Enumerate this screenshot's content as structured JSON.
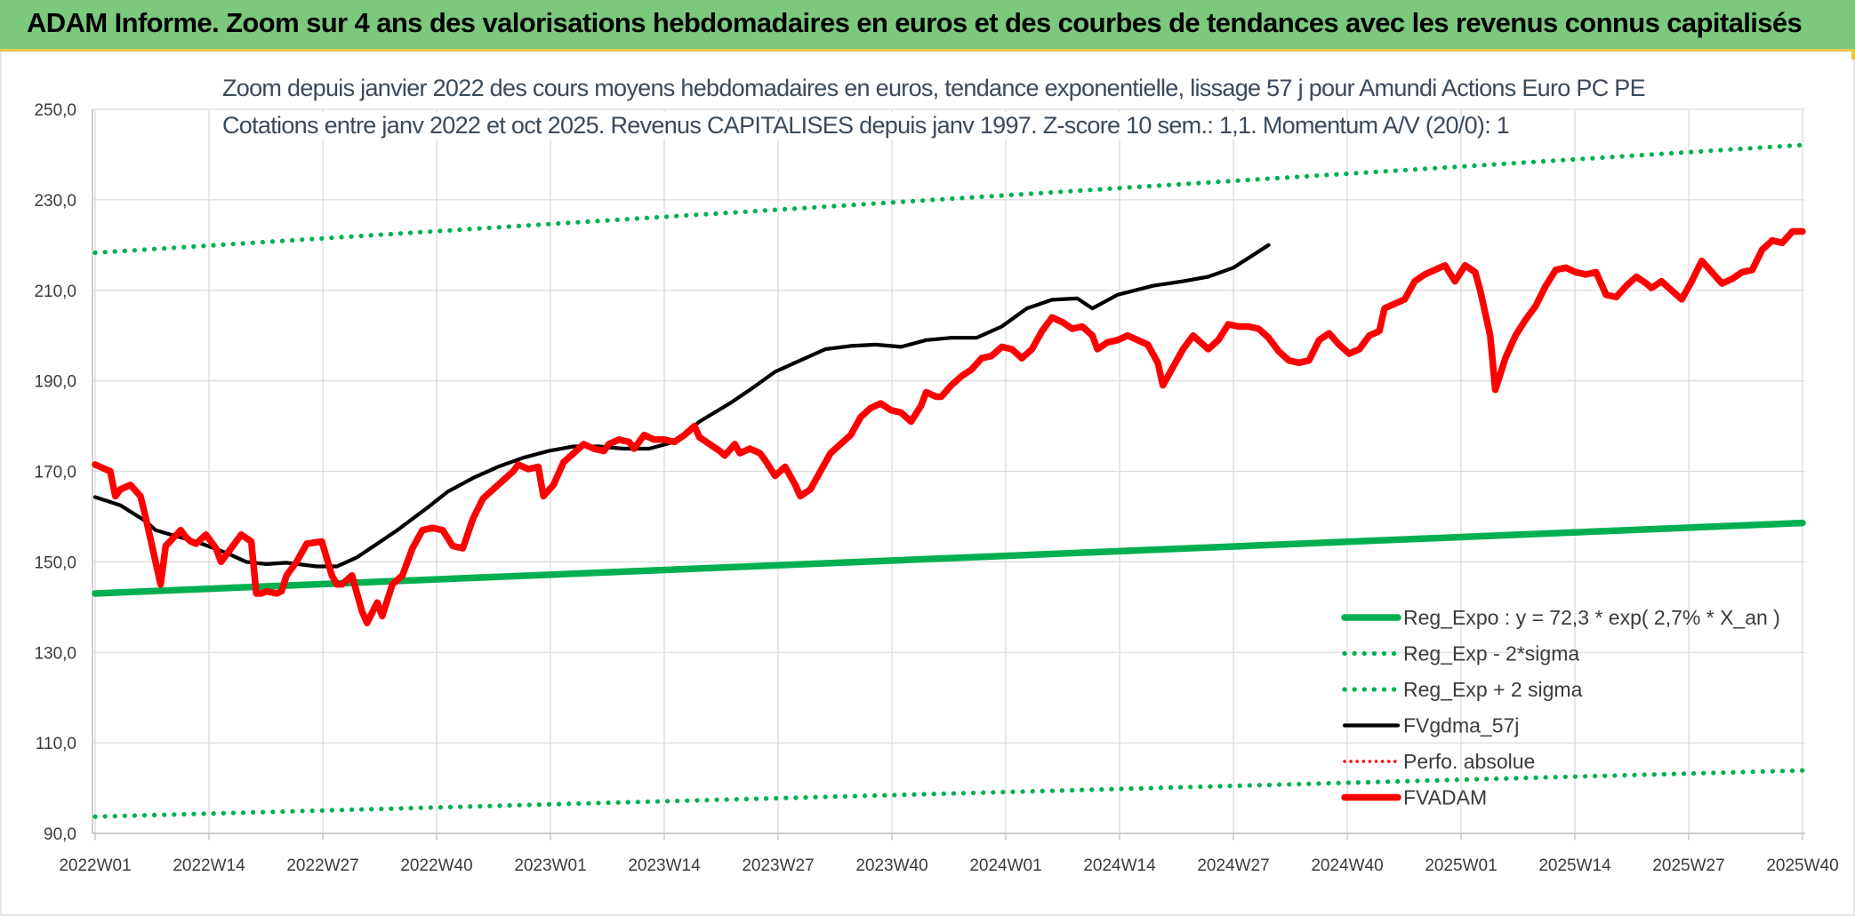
{
  "header": {
    "title": "ADAM Informe. Zoom sur 4 ans des valorisations hebdomadaires en euros et des courbes de tendances avec les revenus connus capitalisés"
  },
  "chart_data": {
    "type": "line",
    "title": "Zoom depuis janvier 2022 des cours moyens hebdomadaires en euros, tendance exponentielle, lissage 57 j pour Amundi Actions Euro PC PE",
    "subtitle": "Cotations entre janv 2022 et oct 2025. Revenus CAPITALISES depuis janv 1997. Z-score 10 sem.: 1,1. Momentum A/V (20/0): 1",
    "xlabel": "",
    "ylabel": "",
    "ylim": [
      90,
      250
    ],
    "y_ticks": [
      "90,0",
      "110,0",
      "130,0",
      "150,0",
      "170,0",
      "190,0",
      "210,0",
      "230,0",
      "250,0"
    ],
    "x_tick_labels": [
      "2022W01",
      "2022W14",
      "2022W27",
      "2022W40",
      "2023W01",
      "2023W14",
      "2023W27",
      "2023W40",
      "2024W01",
      "2024W14",
      "2024W27",
      "2024W40",
      "2025W01",
      "2025W14",
      "2025W27",
      "2025W40"
    ],
    "week_count": 196,
    "grid": true,
    "legend_position": "bottom-right",
    "series": [
      {
        "name": "Reg_Expo : y = 72,3 * exp( 2,7% *  X_an )",
        "color": "#00b050",
        "style": "solid",
        "key": [
          [
            0,
            143.0
          ],
          [
            195,
            158.6
          ]
        ]
      },
      {
        "name": "Reg_Exp - 2*sigma",
        "color": "#00b050",
        "style": "dotted",
        "key": [
          [
            0,
            93.7
          ],
          [
            195,
            103.9
          ]
        ]
      },
      {
        "name": "Reg_Exp + 2 sigma",
        "color": "#00b050",
        "style": "dotted",
        "key": [
          [
            0,
            218.3
          ],
          [
            195,
            242.1
          ]
        ]
      },
      {
        "name": "FVgdma_57j",
        "color": "#000000",
        "style": "solid",
        "key": [
          [
            0,
            164.3
          ],
          [
            5,
            162.5
          ],
          [
            10,
            159.0
          ],
          [
            12,
            157.0
          ],
          [
            15,
            156.0
          ],
          [
            20,
            154.5
          ],
          [
            26,
            152.0
          ],
          [
            30,
            150.0
          ],
          [
            34,
            149.5
          ],
          [
            38,
            149.8
          ],
          [
            44,
            149.0
          ],
          [
            48,
            149.0
          ],
          [
            52,
            151.0
          ],
          [
            56,
            154.0
          ],
          [
            60,
            157.0
          ],
          [
            66,
            162.0
          ],
          [
            70,
            165.5
          ],
          [
            75,
            168.5
          ],
          [
            80,
            171.0
          ],
          [
            85,
            173.0
          ],
          [
            90,
            174.5
          ],
          [
            95,
            175.5
          ],
          [
            100,
            175.5
          ],
          [
            105,
            175.0
          ],
          [
            110,
            175.0
          ],
          [
            115,
            176.5
          ],
          [
            120,
            181.0
          ],
          [
            126,
            185.0
          ],
          [
            130,
            188.0
          ],
          [
            135,
            192.0
          ],
          [
            140,
            194.5
          ],
          [
            145,
            197.0
          ],
          [
            150,
            197.7
          ],
          [
            155,
            198.0
          ],
          [
            160,
            197.5
          ],
          [
            165,
            199.0
          ],
          [
            170,
            199.5
          ],
          [
            175,
            199.5
          ],
          [
            180,
            202.0
          ],
          [
            185,
            206.0
          ],
          [
            190,
            207.9
          ],
          [
            195,
            208.2
          ],
          [
            198,
            206.0
          ],
          [
            203,
            209.0
          ],
          [
            210,
            211.0
          ],
          [
            216,
            212.0
          ],
          [
            221,
            213.0
          ],
          [
            226,
            215.0
          ],
          [
            233,
            220.0
          ]
        ]
      },
      {
        "name": "Perfo. absolue",
        "color": "#ff0000",
        "style": "dotted",
        "key": []
      },
      {
        "name": "FVADAM",
        "color": "#ff0000",
        "style": "solid",
        "key": [
          [
            0,
            171.5
          ],
          [
            2,
            170.5
          ],
          [
            3,
            170.0
          ],
          [
            4,
            164.5
          ],
          [
            5,
            166.0
          ],
          [
            7,
            167.0
          ],
          [
            9,
            164.5
          ],
          [
            10,
            160.0
          ],
          [
            11,
            155.0
          ],
          [
            13,
            145.0
          ],
          [
            14,
            153.5
          ],
          [
            17,
            157.0
          ],
          [
            18,
            155.5
          ],
          [
            19,
            154.5
          ],
          [
            20,
            154.0
          ],
          [
            22,
            156.0
          ],
          [
            24,
            153.0
          ],
          [
            25,
            150.0
          ],
          [
            27,
            153.0
          ],
          [
            29,
            156.0
          ],
          [
            31,
            154.5
          ],
          [
            32,
            143.0
          ],
          [
            33,
            143.0
          ],
          [
            34,
            143.5
          ],
          [
            36,
            143.0
          ],
          [
            37,
            143.5
          ],
          [
            38,
            147.0
          ],
          [
            40,
            150.0
          ],
          [
            42,
            154.0
          ],
          [
            45,
            154.5
          ],
          [
            47,
            147.0
          ],
          [
            48,
            145.0
          ],
          [
            49,
            145.0
          ],
          [
            51,
            147.0
          ],
          [
            53,
            139.0
          ],
          [
            54,
            136.5
          ],
          [
            56,
            141.0
          ],
          [
            57,
            138.0
          ],
          [
            59,
            145.0
          ],
          [
            61,
            147.0
          ],
          [
            63,
            153.0
          ],
          [
            65,
            157.0
          ],
          [
            67,
            157.5
          ],
          [
            69,
            157.0
          ],
          [
            71,
            153.5
          ],
          [
            73,
            153.0
          ],
          [
            75,
            159.5
          ],
          [
            77,
            164.0
          ],
          [
            79,
            166.0
          ],
          [
            81,
            168.0
          ],
          [
            83,
            170.0
          ],
          [
            84,
            171.5
          ],
          [
            86,
            170.5
          ],
          [
            88,
            171.0
          ],
          [
            89,
            164.5
          ],
          [
            91,
            167.0
          ],
          [
            93,
            172.0
          ],
          [
            95,
            174.0
          ],
          [
            97,
            176.0
          ],
          [
            99,
            175.0
          ],
          [
            101,
            174.5
          ],
          [
            102,
            176.0
          ],
          [
            104,
            177.0
          ],
          [
            106,
            176.5
          ],
          [
            107,
            175.0
          ],
          [
            109,
            178.0
          ],
          [
            111,
            177.0
          ],
          [
            113,
            177.0
          ],
          [
            115,
            176.5
          ],
          [
            117,
            178.0
          ],
          [
            119,
            180.0
          ],
          [
            120,
            177.5
          ],
          [
            122,
            176.0
          ],
          [
            124,
            174.5
          ],
          [
            125,
            173.5
          ],
          [
            127,
            176.0
          ],
          [
            128,
            174.0
          ],
          [
            130,
            175.0
          ],
          [
            132,
            174.0
          ],
          [
            133,
            172.5
          ],
          [
            135,
            169.0
          ],
          [
            137,
            171.0
          ],
          [
            139,
            167.0
          ],
          [
            140,
            164.5
          ],
          [
            142,
            166.0
          ],
          [
            144,
            170.0
          ],
          [
            146,
            174.0
          ],
          [
            148,
            176.0
          ],
          [
            150,
            178.0
          ],
          [
            152,
            182.0
          ],
          [
            154,
            184.0
          ],
          [
            156,
            185.0
          ],
          [
            158,
            183.5
          ],
          [
            160,
            183.0
          ],
          [
            162,
            181.0
          ],
          [
            164,
            184.5
          ],
          [
            165,
            187.5
          ],
          [
            167,
            186.5
          ],
          [
            168,
            186.5
          ],
          [
            170,
            189.0
          ],
          [
            172,
            191.0
          ],
          [
            174,
            192.5
          ],
          [
            176,
            195.0
          ],
          [
            178,
            195.5
          ],
          [
            180,
            197.5
          ],
          [
            182,
            197.0
          ],
          [
            184,
            195.0
          ],
          [
            186,
            197.0
          ],
          [
            188,
            201.0
          ],
          [
            190,
            204.0
          ],
          [
            192,
            203.0
          ],
          [
            194,
            201.5
          ],
          [
            196,
            202.0
          ],
          [
            198,
            200.0
          ],
          [
            199,
            197.0
          ],
          [
            201,
            198.5
          ],
          [
            203,
            199.0
          ],
          [
            205,
            200.0
          ],
          [
            207,
            199.0
          ],
          [
            209,
            198.0
          ],
          [
            211,
            194.0
          ],
          [
            212,
            189.0
          ],
          [
            214,
            193.0
          ],
          [
            216,
            197.0
          ],
          [
            218,
            200.0
          ],
          [
            219,
            199.0
          ],
          [
            221,
            197.0
          ],
          [
            223,
            199.0
          ],
          [
            225,
            202.5
          ],
          [
            227,
            202.0
          ],
          [
            229,
            202.0
          ],
          [
            231,
            201.5
          ],
          [
            233,
            199.5
          ],
          [
            235,
            196.5
          ],
          [
            237,
            194.5
          ],
          [
            239,
            194.0
          ],
          [
            241,
            194.5
          ],
          [
            243,
            199.0
          ],
          [
            245,
            200.5
          ],
          [
            247,
            198.0
          ],
          [
            249,
            196.0
          ],
          [
            251,
            197.0
          ],
          [
            253,
            200.0
          ],
          [
            255,
            201.0
          ],
          [
            256,
            206.0
          ],
          [
            258,
            207.0
          ],
          [
            260,
            208.0
          ],
          [
            262,
            212.0
          ],
          [
            264,
            213.5
          ],
          [
            266,
            214.5
          ],
          [
            268,
            215.5
          ],
          [
            270,
            212.0
          ],
          [
            272,
            215.5
          ],
          [
            274,
            214.0
          ],
          [
            275,
            210.0
          ],
          [
            277,
            200.0
          ],
          [
            278,
            188.0
          ],
          [
            280,
            195.0
          ],
          [
            282,
            200.0
          ],
          [
            284,
            203.5
          ],
          [
            286,
            206.5
          ],
          [
            288,
            211.0
          ],
          [
            290,
            214.5
          ],
          [
            292,
            215.0
          ],
          [
            294,
            214.0
          ],
          [
            296,
            213.5
          ],
          [
            298,
            214.0
          ],
          [
            300,
            209.0
          ],
          [
            302,
            208.5
          ],
          [
            304,
            211.0
          ],
          [
            306,
            213.0
          ],
          [
            308,
            211.5
          ],
          [
            309,
            210.5
          ],
          [
            311,
            212.0
          ],
          [
            313,
            210.0
          ],
          [
            315,
            208.0
          ],
          [
            317,
            212.0
          ],
          [
            319,
            216.5
          ],
          [
            321,
            214.0
          ],
          [
            323,
            211.5
          ],
          [
            325,
            212.5
          ],
          [
            327,
            214.0
          ],
          [
            329,
            214.5
          ],
          [
            331,
            219.0
          ],
          [
            333,
            221.0
          ],
          [
            335,
            220.5
          ],
          [
            337,
            223.0
          ],
          [
            339,
            223.0
          ]
        ]
      }
    ]
  }
}
